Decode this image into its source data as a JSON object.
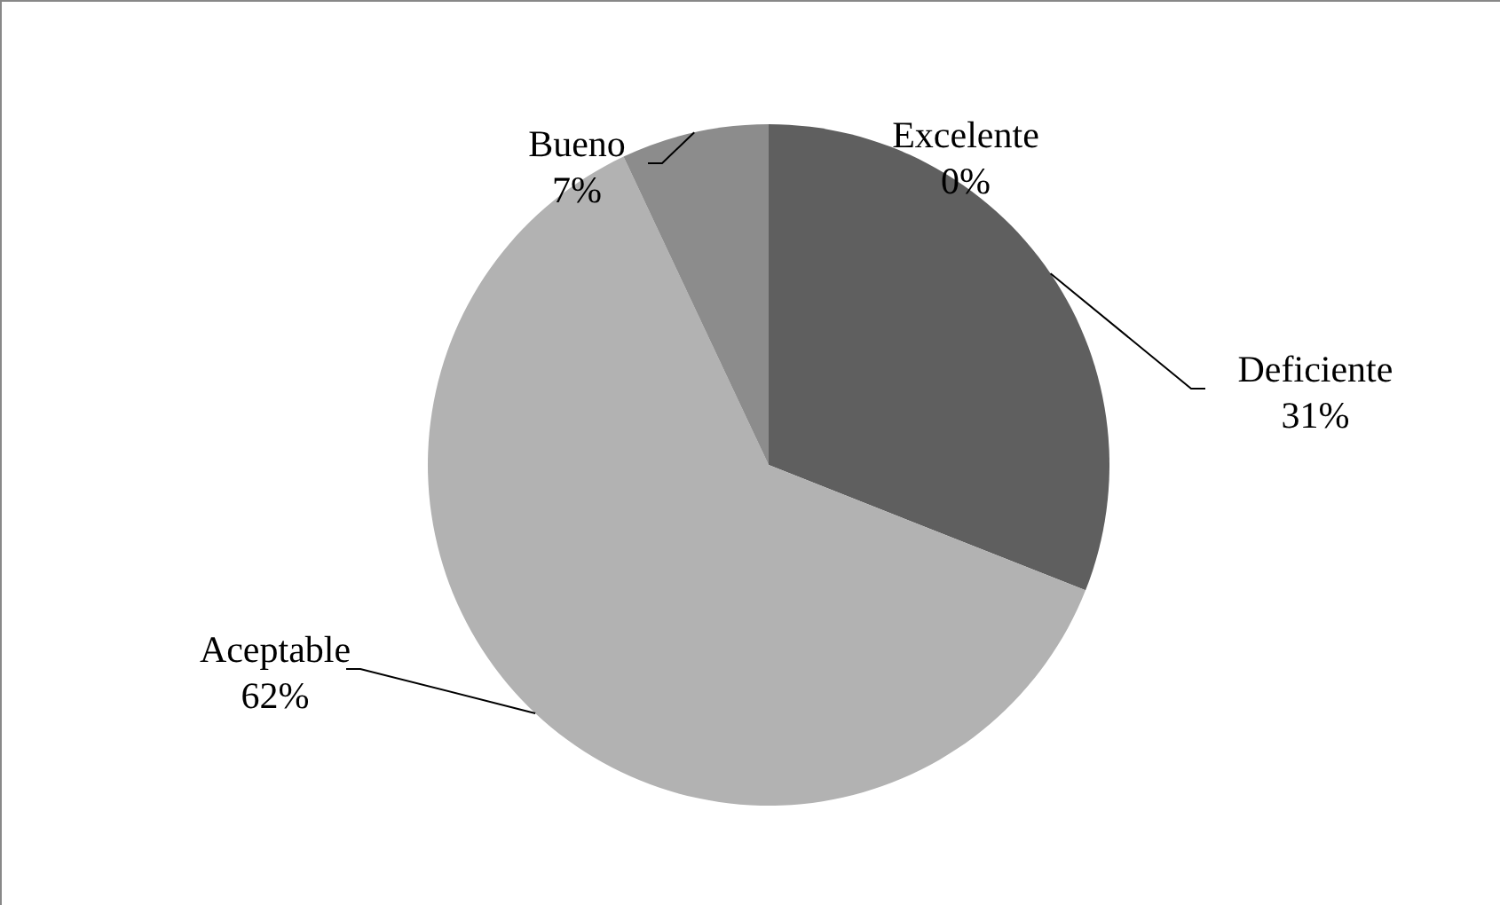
{
  "chart_data": {
    "type": "pie",
    "categories": [
      "Excelente",
      "Deficiente",
      "Aceptable",
      "Bueno"
    ],
    "values": [
      0,
      31,
      62,
      7
    ],
    "value_labels": [
      "0%",
      "31%",
      "62%",
      "7%"
    ],
    "colors": [
      "#3f3f3f",
      "#5f5f5f",
      "#b2b2b2",
      "#8c8c8c"
    ]
  }
}
